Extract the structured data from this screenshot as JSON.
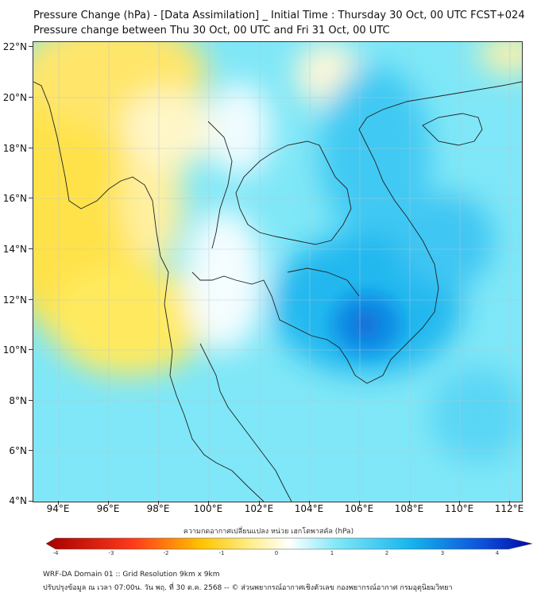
{
  "title_line1": "Pressure Change (hPa) - [Data Assimilation] _ Initial Time : Thursday 30 Oct, 00 UTC FCST+024",
  "title_line2": "Pressure change between Thu 30 Oct, 00 UTC and Fri 31 Oct, 00 UTC",
  "lat_labels": [
    "22°N",
    "20°N",
    "18°N",
    "16°N",
    "14°N",
    "12°N",
    "10°N",
    "8°N",
    "6°N",
    "4°N"
  ],
  "lon_labels": [
    "94°E",
    "96°E",
    "98°E",
    "100°E",
    "102°E",
    "104°E",
    "106°E",
    "108°E",
    "110°E",
    "112°E"
  ],
  "colorbar": {
    "title": "ความกดอากาศเปลี่ยนแปลง หน่วย เฮกโตพาสคัล (hPa)",
    "ticks": [
      "-4",
      "-3",
      "-2",
      "-1",
      "0",
      "1",
      "2",
      "3",
      "4"
    ],
    "min": -4,
    "max": 4
  },
  "colors": {
    "neg_strong": "#a40000",
    "neg_mid": "#ff3a1a",
    "neg_light": "#ffe24a",
    "neutral": "#ffffff",
    "pos_light": "#7fe7f7",
    "pos_mid": "#16b4ee",
    "pos_strong": "#0008a8"
  },
  "footer_line1": "WRF-DA Domain 01 :: Grid Resolution 9km x 9km",
  "footer_line2": "ปรับปรุงข้อมูล ณ เวลา 07:00น. วัน พฤ. ที่ 30 ต.ค. 2568 -- © ส่วนพยากรณ์อากาศเชิงตัวเลข กองพยากรณ์อากาศ กรมอุตุนิยมวิทยา"
}
